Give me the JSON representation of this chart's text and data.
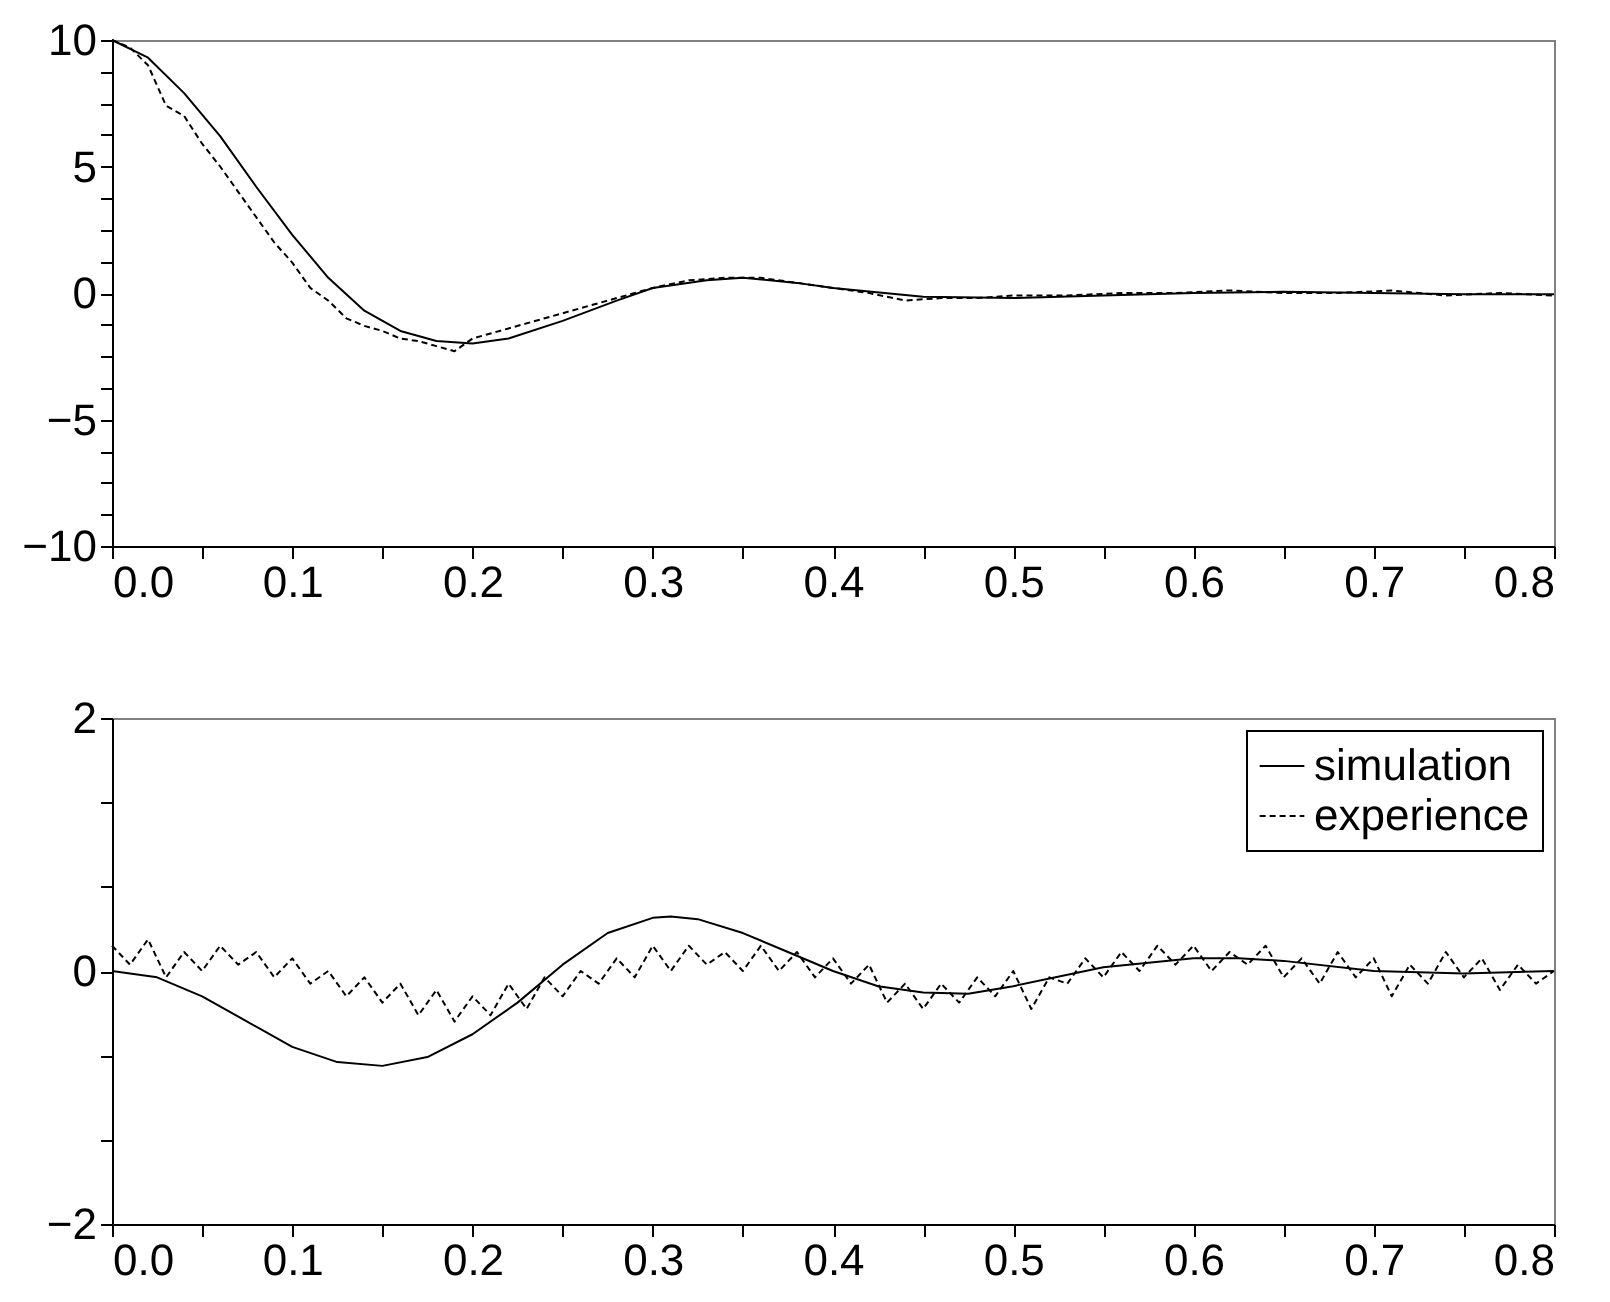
{
  "chart_data": [
    {
      "type": "line",
      "legend": false,
      "xlim": [
        0,
        0.8
      ],
      "ylim": [
        -10,
        10
      ],
      "xticks": [
        {
          "value": 0,
          "label": "0.0"
        },
        {
          "value": 0.05,
          "label": null
        },
        {
          "value": 0.1,
          "label": "0.1"
        },
        {
          "value": 0.15,
          "label": null
        },
        {
          "value": 0.2,
          "label": "0.2"
        },
        {
          "value": 0.25,
          "label": null
        },
        {
          "value": 0.3,
          "label": "0.3"
        },
        {
          "value": 0.35,
          "label": null
        },
        {
          "value": 0.4,
          "label": "0.4"
        },
        {
          "value": 0.45,
          "label": null
        },
        {
          "value": 0.5,
          "label": "0.5"
        },
        {
          "value": 0.55,
          "label": null
        },
        {
          "value": 0.6,
          "label": "0.6"
        },
        {
          "value": 0.65,
          "label": null
        },
        {
          "value": 0.7,
          "label": "0.7"
        },
        {
          "value": 0.75,
          "label": null
        },
        {
          "value": 0.8,
          "label": "0.8"
        }
      ],
      "yticks": [
        -10,
        {
          "value": -8.75,
          "label": null
        },
        {
          "value": -7.5,
          "label": null
        },
        {
          "value": -6.25,
          "label": null
        },
        -5,
        {
          "value": -3.75,
          "label": null
        },
        {
          "value": -2.5,
          "label": null
        },
        {
          "value": -1.25,
          "label": null
        },
        0,
        {
          "value": 1.25,
          "label": null
        },
        {
          "value": 2.5,
          "label": null
        },
        {
          "value": 3.75,
          "label": null
        },
        5,
        {
          "value": 6.25,
          "label": null
        },
        {
          "value": 7.5,
          "label": null
        },
        {
          "value": 8.75,
          "label": null
        },
        10
      ],
      "series": [
        {
          "color": "#000000",
          "line_style": "solid",
          "x": [
            0,
            0.02,
            0.04,
            0.06,
            0.08,
            0.1,
            0.12,
            0.14,
            0.16,
            0.18,
            0.2,
            0.22,
            0.25,
            0.28,
            0.3,
            0.33,
            0.35,
            0.38,
            0.4,
            0.45,
            0.5,
            0.55,
            0.6,
            0.65,
            0.7,
            0.75,
            0.8
          ],
          "values": [
            10,
            9.3,
            7.9,
            6.2,
            4.2,
            2.3,
            0.6,
            -0.7,
            -1.5,
            -1.9,
            -2.0,
            -1.8,
            -1.1,
            -0.3,
            0.2,
            0.5,
            0.6,
            0.4,
            0.2,
            -0.15,
            -0.2,
            -0.1,
            0.0,
            0.05,
            0.0,
            -0.05,
            -0.05
          ]
        },
        {
          "color": "#000000",
          "line_style": "dashed",
          "x": [
            0,
            0.01,
            0.02,
            0.03,
            0.04,
            0.05,
            0.06,
            0.07,
            0.08,
            0.09,
            0.1,
            0.11,
            0.12,
            0.13,
            0.14,
            0.15,
            0.16,
            0.17,
            0.18,
            0.19,
            0.2,
            0.22,
            0.24,
            0.26,
            0.28,
            0.3,
            0.32,
            0.34,
            0.36,
            0.38,
            0.4,
            0.42,
            0.44,
            0.46,
            0.48,
            0.5,
            0.53,
            0.56,
            0.59,
            0.62,
            0.65,
            0.68,
            0.71,
            0.74,
            0.77,
            0.8
          ],
          "values": [
            10,
            9.7,
            9.0,
            7.4,
            7.0,
            5.9,
            5.0,
            4.0,
            3.0,
            2.0,
            1.2,
            0.2,
            -0.3,
            -1.0,
            -1.3,
            -1.5,
            -1.8,
            -1.9,
            -2.1,
            -2.3,
            -1.8,
            -1.4,
            -1.0,
            -0.6,
            -0.2,
            0.2,
            0.5,
            0.6,
            0.6,
            0.4,
            0.2,
            0.0,
            -0.3,
            -0.2,
            -0.2,
            -0.1,
            -0.1,
            0.0,
            0.0,
            0.1,
            0.0,
            0.0,
            0.1,
            -0.1,
            0.0,
            -0.1
          ]
        }
      ]
    },
    {
      "type": "line",
      "legend": "top right",
      "xlim": [
        0,
        0.8
      ],
      "ylim": [
        -2,
        2
      ],
      "xticks": [
        {
          "value": 0,
          "label": "0.0"
        },
        {
          "value": 0.05,
          "label": null
        },
        {
          "value": 0.1,
          "label": "0.1"
        },
        {
          "value": 0.15,
          "label": null
        },
        {
          "value": 0.2,
          "label": "0.2"
        },
        {
          "value": 0.25,
          "label": null
        },
        {
          "value": 0.3,
          "label": "0.3"
        },
        {
          "value": 0.35,
          "label": null
        },
        {
          "value": 0.4,
          "label": "0.4"
        },
        {
          "value": 0.45,
          "label": null
        },
        {
          "value": 0.5,
          "label": "0.5"
        },
        {
          "value": 0.55,
          "label": null
        },
        {
          "value": 0.6,
          "label": "0.6"
        },
        {
          "value": 0.65,
          "label": null
        },
        {
          "value": 0.7,
          "label": "0.7"
        },
        {
          "value": 0.75,
          "label": null
        },
        {
          "value": 0.8,
          "label": "0.8"
        }
      ],
      "yticks": [
        -2,
        {
          "value": -1.33,
          "label": null
        },
        {
          "value": -0.67,
          "label": null
        },
        0,
        {
          "value": 0.67,
          "label": null
        },
        {
          "value": 1.33,
          "label": null
        },
        2
      ],
      "series": [
        {
          "name": "simulation",
          "color": "#000000",
          "line_style": "solid",
          "x": [
            0,
            0.025,
            0.05,
            0.075,
            0.1,
            0.125,
            0.15,
            0.175,
            0.2,
            0.225,
            0.25,
            0.275,
            0.3,
            0.31,
            0.325,
            0.35,
            0.375,
            0.4,
            0.425,
            0.45,
            0.475,
            0.5,
            0.55,
            0.6,
            0.625,
            0.65,
            0.7,
            0.75,
            0.8
          ],
          "values": [
            0,
            -0.05,
            -0.2,
            -0.4,
            -0.6,
            -0.72,
            -0.75,
            -0.68,
            -0.5,
            -0.25,
            0.05,
            0.3,
            0.42,
            0.43,
            0.41,
            0.3,
            0.15,
            0.0,
            -0.12,
            -0.17,
            -0.18,
            -0.12,
            0.03,
            0.1,
            0.1,
            0.08,
            0.0,
            -0.02,
            0.0
          ]
        },
        {
          "name": "experience",
          "color": "#000000",
          "line_style": "dashed",
          "x": [
            0,
            0.01,
            0.02,
            0.03,
            0.04,
            0.05,
            0.06,
            0.07,
            0.08,
            0.09,
            0.1,
            0.11,
            0.12,
            0.13,
            0.14,
            0.15,
            0.16,
            0.17,
            0.18,
            0.19,
            0.2,
            0.21,
            0.22,
            0.23,
            0.24,
            0.25,
            0.26,
            0.27,
            0.28,
            0.29,
            0.3,
            0.31,
            0.32,
            0.33,
            0.34,
            0.35,
            0.36,
            0.37,
            0.38,
            0.39,
            0.4,
            0.41,
            0.42,
            0.43,
            0.44,
            0.45,
            0.46,
            0.47,
            0.48,
            0.49,
            0.5,
            0.51,
            0.52,
            0.53,
            0.54,
            0.55,
            0.56,
            0.57,
            0.58,
            0.59,
            0.6,
            0.61,
            0.62,
            0.63,
            0.64,
            0.65,
            0.66,
            0.67,
            0.68,
            0.69,
            0.7,
            0.71,
            0.72,
            0.73,
            0.74,
            0.75,
            0.76,
            0.77,
            0.78,
            0.79,
            0.8
          ],
          "values": [
            0.2,
            0.05,
            0.25,
            -0.05,
            0.15,
            0.0,
            0.2,
            0.05,
            0.15,
            -0.05,
            0.1,
            -0.1,
            0.0,
            -0.2,
            -0.05,
            -0.25,
            -0.1,
            -0.35,
            -0.15,
            -0.4,
            -0.2,
            -0.35,
            -0.1,
            -0.3,
            -0.05,
            -0.2,
            0.0,
            -0.1,
            0.1,
            -0.05,
            0.2,
            0.0,
            0.2,
            0.05,
            0.15,
            0.0,
            0.2,
            0.0,
            0.15,
            -0.05,
            0.1,
            -0.1,
            0.05,
            -0.25,
            -0.1,
            -0.3,
            -0.1,
            -0.25,
            -0.05,
            -0.2,
            0.0,
            -0.3,
            -0.05,
            -0.1,
            0.1,
            -0.05,
            0.15,
            0.0,
            0.2,
            0.05,
            0.2,
            0.0,
            0.15,
            0.05,
            0.2,
            -0.05,
            0.1,
            -0.1,
            0.15,
            -0.05,
            0.1,
            -0.2,
            0.05,
            -0.1,
            0.15,
            -0.05,
            0.1,
            -0.15,
            0.05,
            -0.1,
            0.0
          ]
        }
      ]
    }
  ]
}
